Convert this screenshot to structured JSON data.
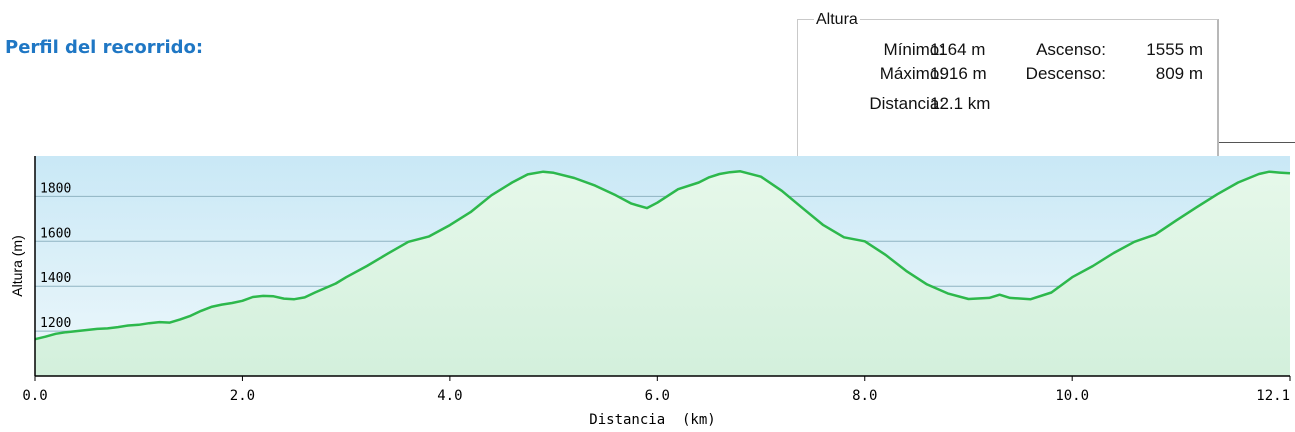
{
  "heading": "Perfil del recorrido:",
  "stats": {
    "legend": "Altura",
    "min_label": "Mínimo:",
    "min_value": "1164 m",
    "ascent_label": "Ascenso:",
    "ascent_value": "1555 m",
    "max_label": "Máximo:",
    "max_value": "1916 m",
    "descent_label": "Descenso:",
    "descent_value": "809 m",
    "distance_label": "Distancia:",
    "distance_value": "12.1 km"
  },
  "chart_data": {
    "type": "area",
    "title": "",
    "xlabel": "Distancia  (km)",
    "ylabel": "Altura (m)",
    "xlim": [
      0,
      12.1
    ],
    "ylim": [
      1000,
      1980
    ],
    "xticks": [
      0.0,
      2.0,
      4.0,
      6.0,
      8.0,
      10.0,
      12.1
    ],
    "xtick_labels": [
      "0.0",
      "2.0",
      "4.0",
      "6.0",
      "8.0",
      "10.0",
      "12.1"
    ],
    "yticks": [
      1200,
      1400,
      1600,
      1800
    ],
    "ytick_labels": [
      "1200",
      "1400",
      "1600",
      "1800"
    ],
    "grid": "horizontal",
    "colors": {
      "line": "#2db84c",
      "fill_top": "#e6f8ea",
      "fill_bottom": "#d3f0dc",
      "bg_top": "#c9e8f6",
      "bg_bottom": "#eef8fb",
      "grid": "#8fb3c2"
    },
    "series": [
      {
        "x": [
          0.0,
          0.1,
          0.2,
          0.3,
          0.4,
          0.5,
          0.6,
          0.7,
          0.8,
          0.9,
          1.0,
          1.1,
          1.2,
          1.3,
          1.4,
          1.5,
          1.6,
          1.7,
          1.8,
          1.9,
          2.0,
          2.1,
          2.2,
          2.3,
          2.4,
          2.5,
          2.6,
          2.7,
          2.8,
          2.9,
          3.0,
          3.2,
          3.4,
          3.6,
          3.8,
          4.0,
          4.2,
          4.4,
          4.6,
          4.75,
          4.9,
          5.0,
          5.2,
          5.4,
          5.6,
          5.75,
          5.9,
          6.0,
          6.2,
          6.4,
          6.5,
          6.6,
          6.7,
          6.8,
          7.0,
          7.2,
          7.4,
          7.6,
          7.8,
          8.0,
          8.2,
          8.4,
          8.6,
          8.8,
          9.0,
          9.2,
          9.3,
          9.4,
          9.6,
          9.8,
          10.0,
          10.2,
          10.4,
          10.6,
          10.8,
          11.0,
          11.2,
          11.4,
          11.6,
          11.8,
          11.9,
          12.0,
          12.1
        ],
        "y": [
          1164,
          1175,
          1188,
          1195,
          1200,
          1205,
          1210,
          1212,
          1218,
          1225,
          1228,
          1235,
          1240,
          1238,
          1252,
          1268,
          1290,
          1308,
          1318,
          1325,
          1335,
          1352,
          1357,
          1355,
          1345,
          1342,
          1350,
          1372,
          1392,
          1412,
          1440,
          1490,
          1545,
          1598,
          1622,
          1672,
          1730,
          1805,
          1862,
          1898,
          1910,
          1905,
          1882,
          1848,
          1805,
          1768,
          1748,
          1772,
          1832,
          1862,
          1885,
          1900,
          1908,
          1912,
          1888,
          1825,
          1748,
          1672,
          1618,
          1600,
          1540,
          1468,
          1408,
          1368,
          1343,
          1348,
          1362,
          1348,
          1342,
          1372,
          1440,
          1490,
          1548,
          1598,
          1630,
          1692,
          1752,
          1810,
          1862,
          1900,
          1910,
          1906,
          1903
        ]
      }
    ]
  }
}
